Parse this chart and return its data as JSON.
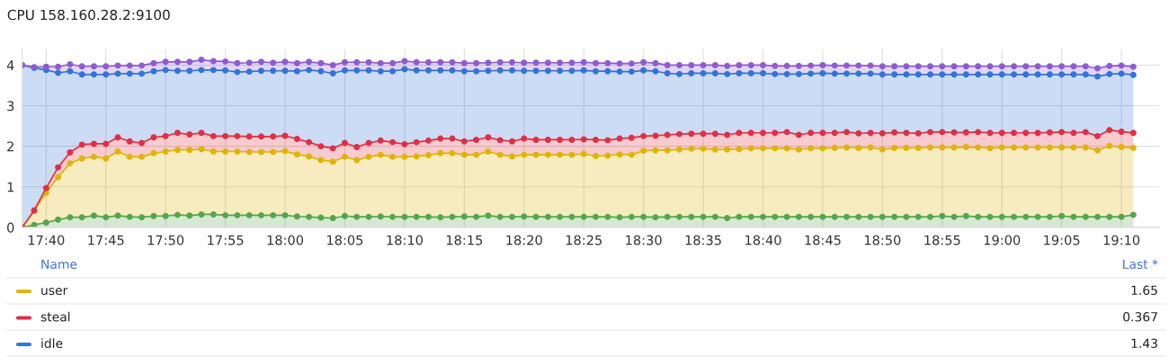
{
  "chart_data": {
    "type": "area",
    "title": "CPU 158.160.28.2:9100",
    "stacked": true,
    "marker": "circle",
    "grid": true,
    "legend": "bottom",
    "x": [
      17.6333,
      17.65,
      17.6667,
      17.6833,
      17.7,
      17.7167,
      17.7333,
      17.75,
      17.7667,
      17.7833,
      17.8,
      17.8167,
      17.8333,
      17.85,
      17.8667,
      17.8833,
      17.9,
      17.9167,
      17.9333,
      17.95,
      17.9667,
      17.9833,
      18.0,
      18.0167,
      18.0333,
      18.05,
      18.0667,
      18.0833,
      18.1,
      18.1167,
      18.1333,
      18.15,
      18.1667,
      18.1833,
      18.2,
      18.2167,
      18.2333,
      18.25,
      18.2667,
      18.2833,
      18.3,
      18.3167,
      18.3333,
      18.35,
      18.3667,
      18.3833,
      18.4,
      18.4167,
      18.4333,
      18.45,
      18.4667,
      18.4833,
      18.5,
      18.5167,
      18.5333,
      18.55,
      18.5667,
      18.5833,
      18.6,
      18.6167,
      18.6333,
      18.65,
      18.6667,
      18.6833,
      18.7,
      18.7167,
      18.7333,
      18.75,
      18.7667,
      18.7833,
      18.8,
      18.8167,
      18.8333,
      18.85,
      18.8667,
      18.8833,
      18.9,
      18.9167,
      18.9333,
      18.95,
      18.9667,
      18.9833,
      19.0,
      19.0167,
      19.0333,
      19.05,
      19.0667,
      19.0833,
      19.1,
      19.1167,
      19.1333,
      19.15,
      19.1667,
      19.1833
    ],
    "series": [
      {
        "color": "#56a64b",
        "values": [
          0,
          0.06,
          0.12,
          0.19,
          0.25,
          0.25,
          0.29,
          0.25,
          0.29,
          0.26,
          0.25,
          0.28,
          0.28,
          0.31,
          0.29,
          0.32,
          0.32,
          0.3,
          0.3,
          0.3,
          0.3,
          0.3,
          0.3,
          0.27,
          0.26,
          0.24,
          0.23,
          0.28,
          0.26,
          0.26,
          0.27,
          0.26,
          0.26,
          0.26,
          0.26,
          0.25,
          0.26,
          0.27,
          0.26,
          0.29,
          0.26,
          0.26,
          0.27,
          0.26,
          0.26,
          0.26,
          0.26,
          0.26,
          0.26,
          0.26,
          0.25,
          0.26,
          0.26,
          0.25,
          0.26,
          0.26,
          0.26,
          0.26,
          0.26,
          0.23,
          0.26,
          0.26,
          0.26,
          0.26,
          0.26,
          0.26,
          0.26,
          0.26,
          0.26,
          0.26,
          0.26,
          0.26,
          0.26,
          0.26,
          0.26,
          0.26,
          0.26,
          0.28,
          0.26,
          0.28,
          0.26,
          0.26,
          0.26,
          0.26,
          0.26,
          0.26,
          0.26,
          0.28,
          0.26,
          0.26,
          0.26,
          0.26,
          0.26,
          0.31
        ]
      },
      {
        "name": "user",
        "color": "#e0b400",
        "values": [
          0,
          0.35,
          0.73,
          1.05,
          1.33,
          1.45,
          1.45,
          1.45,
          1.58,
          1.48,
          1.49,
          1.55,
          1.59,
          1.6,
          1.62,
          1.61,
          1.55,
          1.57,
          1.57,
          1.56,
          1.56,
          1.56,
          1.58,
          1.53,
          1.49,
          1.42,
          1.39,
          1.46,
          1.4,
          1.48,
          1.52,
          1.48,
          1.48,
          1.49,
          1.52,
          1.58,
          1.57,
          1.52,
          1.53,
          1.58,
          1.53,
          1.49,
          1.52,
          1.53,
          1.53,
          1.53,
          1.53,
          1.55,
          1.5,
          1.51,
          1.55,
          1.53,
          1.63,
          1.65,
          1.64,
          1.66,
          1.68,
          1.68,
          1.66,
          1.69,
          1.67,
          1.69,
          1.69,
          1.69,
          1.69,
          1.66,
          1.69,
          1.69,
          1.7,
          1.71,
          1.7,
          1.71,
          1.66,
          1.7,
          1.7,
          1.7,
          1.71,
          1.69,
          1.71,
          1.7,
          1.71,
          1.69,
          1.71,
          1.71,
          1.71,
          1.71,
          1.71,
          1.69,
          1.71,
          1.71,
          1.64,
          1.75,
          1.72,
          1.65
        ]
      },
      {
        "name": "steal",
        "color": "#e02f44",
        "values": [
          0,
          0.01,
          0.12,
          0.24,
          0.27,
          0.34,
          0.32,
          0.36,
          0.35,
          0.38,
          0.34,
          0.39,
          0.38,
          0.42,
          0.38,
          0.4,
          0.38,
          0.38,
          0.38,
          0.38,
          0.38,
          0.38,
          0.38,
          0.38,
          0.35,
          0.34,
          0.33,
          0.34,
          0.32,
          0.34,
          0.35,
          0.36,
          0.31,
          0.35,
          0.36,
          0.36,
          0.36,
          0.33,
          0.37,
          0.35,
          0.36,
          0.37,
          0.4,
          0.37,
          0.37,
          0.37,
          0.37,
          0.36,
          0.4,
          0.38,
          0.39,
          0.42,
          0.36,
          0.36,
          0.38,
          0.38,
          0.37,
          0.37,
          0.39,
          0.36,
          0.4,
          0.38,
          0.38,
          0.38,
          0.4,
          0.36,
          0.38,
          0.38,
          0.37,
          0.38,
          0.36,
          0.36,
          0.4,
          0.38,
          0.37,
          0.36,
          0.38,
          0.38,
          0.37,
          0.36,
          0.38,
          0.38,
          0.36,
          0.36,
          0.36,
          0.36,
          0.37,
          0.38,
          0.36,
          0.38,
          0.35,
          0.39,
          0.38,
          0.37
        ]
      },
      {
        "name": "idle",
        "color": "#3274d9",
        "values": [
          4.0,
          3.51,
          2.91,
          2.33,
          2.0,
          1.73,
          1.71,
          1.71,
          1.57,
          1.67,
          1.71,
          1.63,
          1.63,
          1.53,
          1.57,
          1.55,
          1.63,
          1.62,
          1.58,
          1.6,
          1.62,
          1.62,
          1.6,
          1.67,
          1.78,
          1.85,
          1.85,
          1.79,
          1.89,
          1.79,
          1.71,
          1.75,
          1.85,
          1.77,
          1.73,
          1.68,
          1.68,
          1.73,
          1.69,
          1.64,
          1.72,
          1.75,
          1.67,
          1.7,
          1.7,
          1.7,
          1.7,
          1.7,
          1.69,
          1.7,
          1.65,
          1.63,
          1.62,
          1.59,
          1.52,
          1.48,
          1.49,
          1.49,
          1.49,
          1.5,
          1.47,
          1.47,
          1.47,
          1.45,
          1.43,
          1.5,
          1.46,
          1.47,
          1.46,
          1.44,
          1.47,
          1.46,
          1.45,
          1.43,
          1.44,
          1.45,
          1.42,
          1.42,
          1.43,
          1.43,
          1.42,
          1.44,
          1.44,
          1.44,
          1.44,
          1.44,
          1.43,
          1.42,
          1.44,
          1.42,
          1.47,
          1.38,
          1.43,
          1.43
        ]
      },
      {
        "color": "#8f5bd0",
        "values": [
          0,
          0.02,
          0.08,
          0.15,
          0.17,
          0.2,
          0.2,
          0.2,
          0.2,
          0.2,
          0.2,
          0.2,
          0.2,
          0.22,
          0.22,
          0.25,
          0.22,
          0.22,
          0.22,
          0.22,
          0.22,
          0.2,
          0.22,
          0.2,
          0.2,
          0.2,
          0.2,
          0.2,
          0.2,
          0.2,
          0.2,
          0.2,
          0.2,
          0.2,
          0.2,
          0.2,
          0.2,
          0.2,
          0.2,
          0.2,
          0.2,
          0.2,
          0.2,
          0.2,
          0.2,
          0.2,
          0.2,
          0.2,
          0.2,
          0.2,
          0.2,
          0.2,
          0.2,
          0.2,
          0.2,
          0.22,
          0.2,
          0.2,
          0.2,
          0.2,
          0.2,
          0.2,
          0.2,
          0.2,
          0.2,
          0.2,
          0.2,
          0.2,
          0.2,
          0.2,
          0.2,
          0.2,
          0.2,
          0.2,
          0.2,
          0.2,
          0.2,
          0.2,
          0.2,
          0.2,
          0.2,
          0.2,
          0.2,
          0.2,
          0.2,
          0.2,
          0.2,
          0.2,
          0.2,
          0.2,
          0.2,
          0.2,
          0.2,
          0.2
        ]
      }
    ],
    "xlim": [
      17.6333,
      19.22
    ],
    "ylim": [
      0,
      4.4
    ],
    "xticks": [
      {
        "value": 17.6667,
        "label": "17:40"
      },
      {
        "value": 17.75,
        "label": "17:45"
      },
      {
        "value": 17.8333,
        "label": "17:50"
      },
      {
        "value": 17.9167,
        "label": "17:55"
      },
      {
        "value": 18.0,
        "label": "18:00"
      },
      {
        "value": 18.0833,
        "label": "18:05"
      },
      {
        "value": 18.1667,
        "label": "18:10"
      },
      {
        "value": 18.25,
        "label": "18:15"
      },
      {
        "value": 18.3333,
        "label": "18:20"
      },
      {
        "value": 18.4167,
        "label": "18:25"
      },
      {
        "value": 18.5,
        "label": "18:30"
      },
      {
        "value": 18.5833,
        "label": "18:35"
      },
      {
        "value": 18.6667,
        "label": "18:40"
      },
      {
        "value": 18.75,
        "label": "18:45"
      },
      {
        "value": 18.8333,
        "label": "18:50"
      },
      {
        "value": 18.9167,
        "label": "18:55"
      },
      {
        "value": 19.0,
        "label": "19:00"
      },
      {
        "value": 19.0833,
        "label": "19:05"
      },
      {
        "value": 19.1667,
        "label": "19:10"
      }
    ],
    "yticks": [
      0,
      1,
      2,
      3,
      4
    ],
    "annotations": [
      "Name",
      "Last *",
      "1.65",
      "0.367",
      "1.43"
    ]
  }
}
